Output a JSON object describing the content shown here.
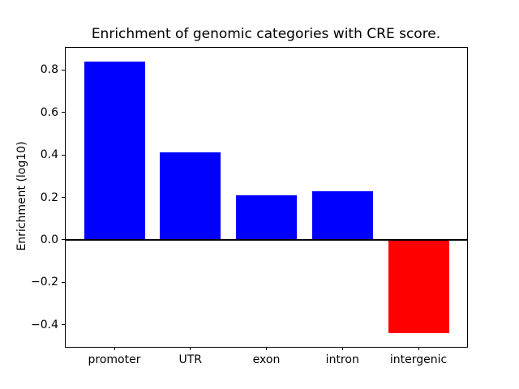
{
  "chart_data": {
    "type": "bar",
    "title": "Enrichment of genomic categories with CRE score.",
    "xlabel": "",
    "ylabel": "Enrichment (log10)",
    "categories": [
      "promoter",
      "UTR",
      "exon",
      "intron",
      "intergenic"
    ],
    "values": [
      0.84,
      0.41,
      0.21,
      0.23,
      -0.44
    ],
    "bar_colors": [
      "#0000ff",
      "#0000ff",
      "#0000ff",
      "#0000ff",
      "#ff0000"
    ],
    "positive_color": "#0000ff",
    "negative_color": "#ff0000",
    "bar_width": 0.8,
    "xlim": [
      -0.64,
      4.64
    ],
    "ylim": [
      -0.504,
      0.904
    ],
    "yticks": [
      0.8,
      0.6,
      0.4,
      0.2,
      0.0,
      -0.2,
      -0.4
    ],
    "ytick_labels": [
      "0.8",
      "0.6",
      "0.4",
      "0.2",
      "0.0",
      "−0.2",
      "−0.4"
    ],
    "zero_line": true,
    "grid": false,
    "legend": null,
    "background_color": "#ffffff",
    "axis_color": "#000000"
  }
}
